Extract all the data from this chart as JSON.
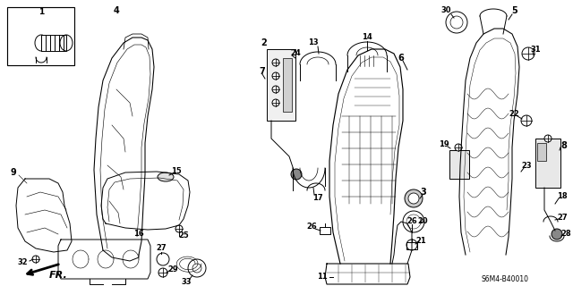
{
  "bg_color": "#ffffff",
  "diagram_code": "S6M4-B40010",
  "fr_label": "FR.",
  "line_width": 0.7,
  "font_size": 6.5
}
